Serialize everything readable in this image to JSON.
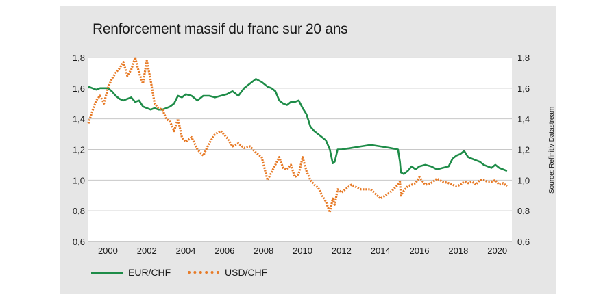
{
  "chart_data": {
    "type": "line",
    "title": "Renforcement massif du franc sur 20 ans",
    "source": "Source: Refinitiv Datastream",
    "xlim": [
      1999.0,
      2020.75
    ],
    "ylim": [
      0.6,
      1.8
    ],
    "x_ticks": [
      2000,
      2002,
      2004,
      2006,
      2008,
      2010,
      2012,
      2014,
      2016,
      2018,
      2020
    ],
    "y_ticks": [
      "0,6",
      "0,8",
      "1,0",
      "1,2",
      "1,4",
      "1,6",
      "1,8"
    ],
    "y_tick_values": [
      0.6,
      0.8,
      1.0,
      1.2,
      1.4,
      1.6,
      1.8
    ],
    "grid": true,
    "legend_placement": "bottom-left",
    "series": [
      {
        "name": "EUR/CHF",
        "color": "#1e8c48",
        "style": "solid",
        "x": [
          1999.0,
          1999.2,
          1999.4,
          1999.6,
          1999.8,
          2000.0,
          2000.2,
          2000.4,
          2000.6,
          2000.8,
          2001.0,
          2001.2,
          2001.4,
          2001.6,
          2001.8,
          2002.0,
          2002.2,
          2002.4,
          2002.6,
          2002.8,
          2003.0,
          2003.2,
          2003.4,
          2003.6,
          2003.8,
          2004.0,
          2004.3,
          2004.6,
          2004.9,
          2005.2,
          2005.5,
          2005.8,
          2006.1,
          2006.4,
          2006.7,
          2007.0,
          2007.3,
          2007.6,
          2007.9,
          2008.2,
          2008.4,
          2008.6,
          2008.8,
          2009.0,
          2009.2,
          2009.4,
          2009.6,
          2009.8,
          2010.0,
          2010.2,
          2010.4,
          2010.6,
          2010.8,
          2011.0,
          2011.2,
          2011.4,
          2011.55,
          2011.65,
          2011.8,
          2012.0,
          2012.5,
          2013.0,
          2013.5,
          2014.0,
          2014.5,
          2014.9,
          2015.0,
          2015.05,
          2015.2,
          2015.4,
          2015.6,
          2015.8,
          2016.0,
          2016.3,
          2016.6,
          2016.9,
          2017.2,
          2017.5,
          2017.7,
          2017.9,
          2018.1,
          2018.3,
          2018.5,
          2018.7,
          2018.9,
          2019.1,
          2019.3,
          2019.5,
          2019.7,
          2019.9,
          2020.1,
          2020.3,
          2020.5
        ],
        "values": [
          1.61,
          1.6,
          1.59,
          1.6,
          1.6,
          1.6,
          1.58,
          1.55,
          1.53,
          1.52,
          1.53,
          1.54,
          1.51,
          1.52,
          1.48,
          1.47,
          1.46,
          1.47,
          1.46,
          1.46,
          1.47,
          1.48,
          1.5,
          1.55,
          1.54,
          1.56,
          1.55,
          1.52,
          1.55,
          1.55,
          1.54,
          1.55,
          1.56,
          1.58,
          1.55,
          1.6,
          1.63,
          1.66,
          1.64,
          1.61,
          1.6,
          1.58,
          1.52,
          1.5,
          1.49,
          1.51,
          1.51,
          1.52,
          1.47,
          1.43,
          1.35,
          1.32,
          1.3,
          1.28,
          1.26,
          1.2,
          1.11,
          1.12,
          1.2,
          1.2,
          1.21,
          1.22,
          1.23,
          1.22,
          1.21,
          1.2,
          1.12,
          1.05,
          1.04,
          1.06,
          1.09,
          1.07,
          1.09,
          1.1,
          1.09,
          1.07,
          1.08,
          1.09,
          1.14,
          1.16,
          1.17,
          1.19,
          1.15,
          1.14,
          1.13,
          1.12,
          1.1,
          1.09,
          1.08,
          1.1,
          1.08,
          1.07,
          1.06
        ]
      },
      {
        "name": "USD/CHF",
        "color": "#e77a26",
        "style": "dotted",
        "x": [
          1999.0,
          1999.2,
          1999.4,
          1999.6,
          1999.8,
          2000.0,
          2000.2,
          2000.4,
          2000.6,
          2000.8,
          2001.0,
          2001.2,
          2001.4,
          2001.6,
          2001.8,
          2002.0,
          2002.2,
          2002.4,
          2002.6,
          2002.8,
          2003.0,
          2003.2,
          2003.4,
          2003.6,
          2003.8,
          2004.0,
          2004.3,
          2004.6,
          2004.9,
          2005.2,
          2005.5,
          2005.8,
          2006.1,
          2006.4,
          2006.7,
          2007.0,
          2007.3,
          2007.6,
          2007.9,
          2008.2,
          2008.4,
          2008.6,
          2008.8,
          2009.0,
          2009.2,
          2009.4,
          2009.6,
          2009.8,
          2010.0,
          2010.2,
          2010.4,
          2010.6,
          2010.8,
          2011.0,
          2011.2,
          2011.4,
          2011.55,
          2011.65,
          2011.8,
          2012.0,
          2012.5,
          2013.0,
          2013.5,
          2014.0,
          2014.5,
          2014.9,
          2015.0,
          2015.05,
          2015.2,
          2015.4,
          2015.6,
          2015.8,
          2016.0,
          2016.3,
          2016.6,
          2016.9,
          2017.2,
          2017.5,
          2017.7,
          2017.9,
          2018.1,
          2018.3,
          2018.5,
          2018.7,
          2018.9,
          2019.1,
          2019.3,
          2019.5,
          2019.7,
          2019.9,
          2020.1,
          2020.3,
          2020.5
        ],
        "values": [
          1.37,
          1.45,
          1.52,
          1.55,
          1.5,
          1.6,
          1.66,
          1.7,
          1.73,
          1.77,
          1.68,
          1.72,
          1.8,
          1.7,
          1.63,
          1.78,
          1.65,
          1.5,
          1.47,
          1.46,
          1.4,
          1.38,
          1.32,
          1.4,
          1.28,
          1.25,
          1.28,
          1.2,
          1.16,
          1.24,
          1.3,
          1.32,
          1.28,
          1.22,
          1.24,
          1.21,
          1.22,
          1.18,
          1.15,
          1.0,
          1.05,
          1.1,
          1.15,
          1.08,
          1.07,
          1.1,
          1.02,
          1.04,
          1.15,
          1.06,
          1.0,
          0.97,
          0.95,
          0.9,
          0.86,
          0.79,
          0.88,
          0.84,
          0.94,
          0.92,
          0.97,
          0.94,
          0.94,
          0.88,
          0.92,
          0.97,
          0.99,
          0.9,
          0.93,
          0.96,
          0.97,
          0.98,
          1.02,
          0.97,
          0.98,
          1.01,
          0.99,
          0.98,
          0.97,
          0.96,
          0.97,
          0.99,
          0.98,
          0.99,
          0.97,
          1.0,
          1.0,
          0.99,
          0.99,
          1.0,
          0.97,
          0.98,
          0.96
        ]
      }
    ]
  }
}
